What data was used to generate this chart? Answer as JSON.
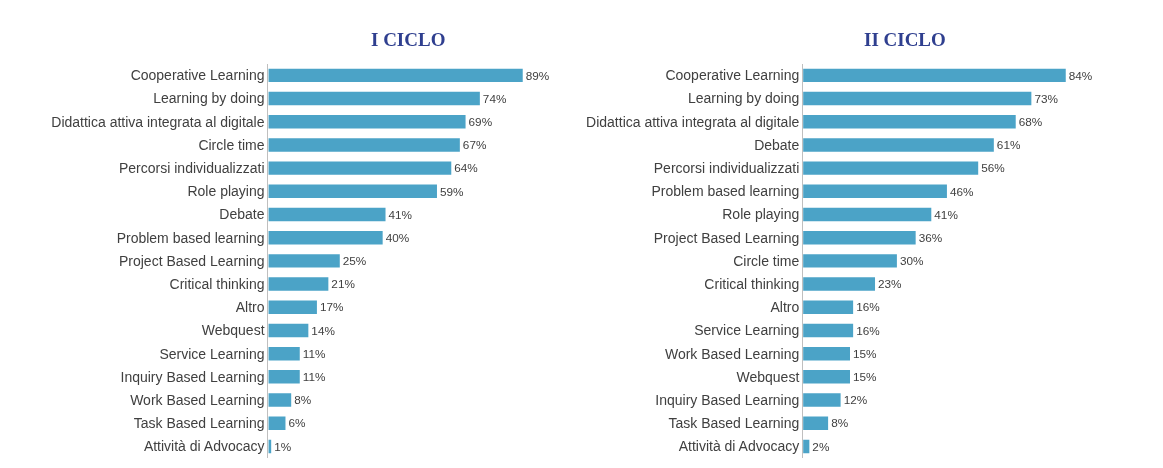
{
  "chart_data": [
    {
      "type": "bar",
      "orientation": "horizontal",
      "title": "I CICLO",
      "color": "#4ba3c7",
      "categories": [
        "Cooperative Learning",
        "Learning by doing",
        "Didattica attiva integrata al digitale",
        "Circle time",
        "Percorsi individualizzati",
        "Role playing",
        "Debate",
        "Problem based learning",
        "Project Based Learning",
        "Critical thinking",
        "Altro",
        "Webquest",
        "Service Learning",
        "Inquiry Based Learning",
        "Work Based Learning",
        "Task Based Learning",
        "Attività di Advocacy"
      ],
      "values": [
        89,
        74,
        69,
        67,
        64,
        59,
        41,
        40,
        25,
        21,
        17,
        14,
        11,
        11,
        8,
        6,
        1
      ],
      "value_labels": [
        "89%",
        "74%",
        "69%",
        "67%",
        "64%",
        "59%",
        "41%",
        "40%",
        "25%",
        "21%",
        "17%",
        "14%",
        "11%",
        "11%",
        "8%",
        "6%",
        "1%"
      ]
    },
    {
      "type": "bar",
      "orientation": "horizontal",
      "title": "II CICLO",
      "color": "#4ba3c7",
      "categories": [
        "Cooperative Learning",
        "Learning by doing",
        "Didattica attiva integrata al digitale",
        "Debate",
        "Percorsi individualizzati",
        "Problem based learning",
        "Role playing",
        "Project Based Learning",
        "Circle time",
        "Critical thinking",
        "Altro",
        "Service Learning",
        "Work Based Learning",
        "Webquest",
        "Inquiry Based Learning",
        "Task Based Learning",
        "Attività di Advocacy"
      ],
      "values": [
        84,
        73,
        68,
        61,
        56,
        46,
        41,
        36,
        30,
        23,
        16,
        16,
        15,
        15,
        12,
        8,
        2
      ],
      "value_labels": [
        "84%",
        "73%",
        "68%",
        "61%",
        "56%",
        "46%",
        "41%",
        "36%",
        "30%",
        "23%",
        "16%",
        "16%",
        "15%",
        "15%",
        "12%",
        "8%",
        "2%"
      ]
    }
  ]
}
